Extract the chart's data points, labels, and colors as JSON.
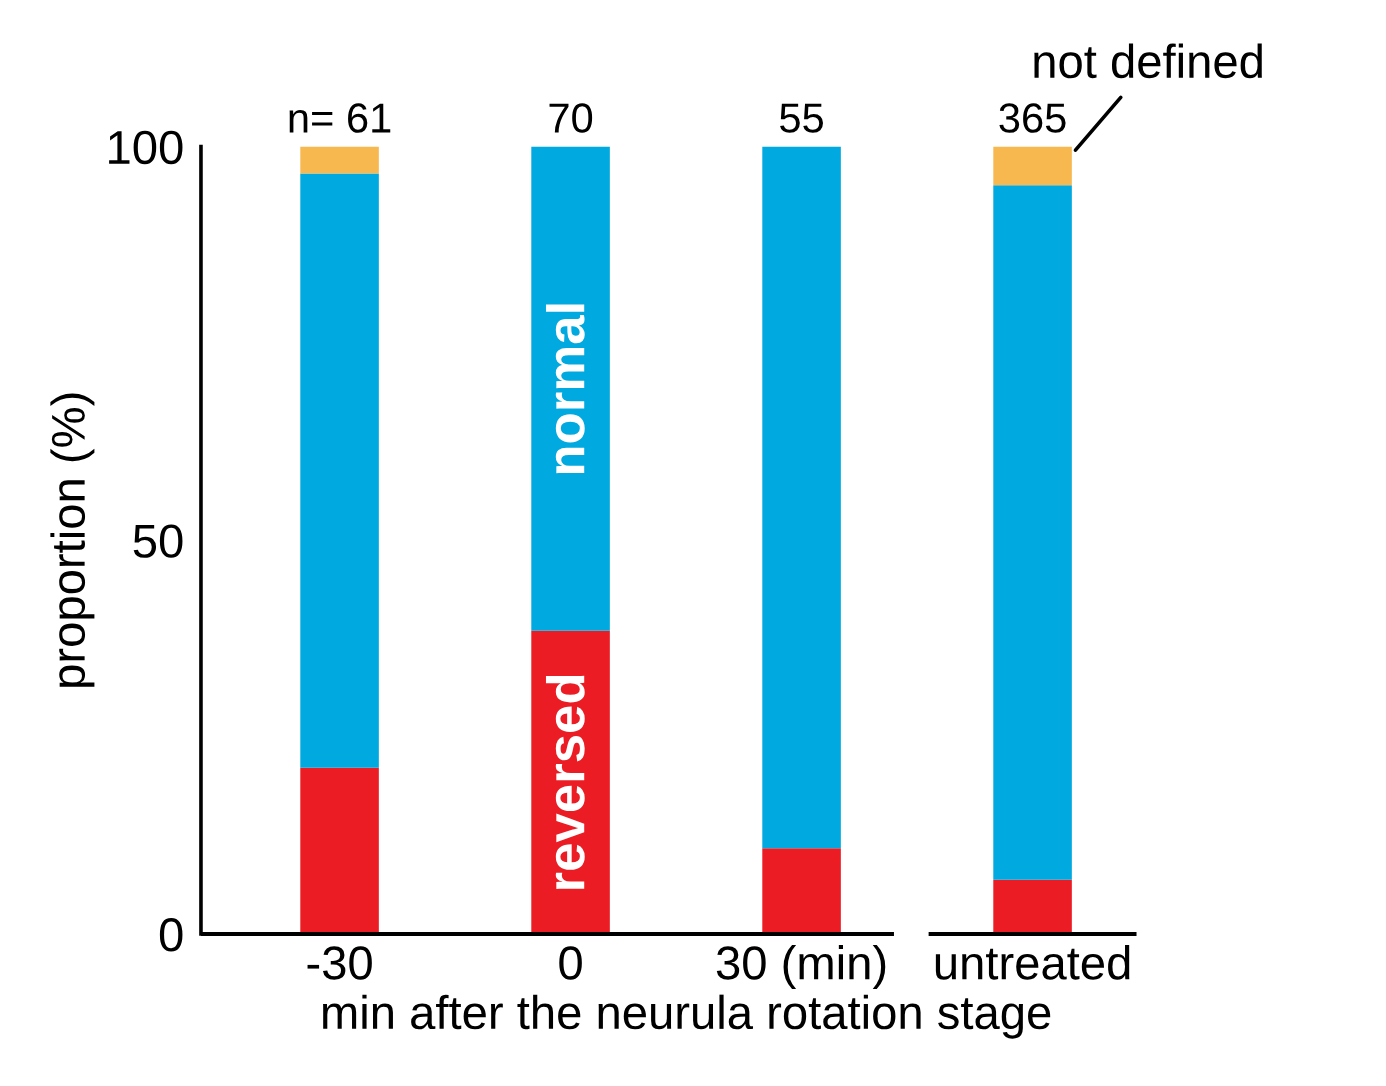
{
  "chart_data": {
    "type": "bar",
    "stacked": true,
    "xlabel": "min after the neurula rotation stage",
    "ylabel": "proportion (%)",
    "categories": [
      "-30",
      "0",
      "30 (min)",
      "untreated"
    ],
    "series": [
      {
        "name": "reversed",
        "color": "#ec1c24",
        "values": [
          21.1,
          38.5,
          10.9,
          6.9
        ]
      },
      {
        "name": "normal",
        "color": "#00a9e0",
        "values": [
          75.5,
          61.5,
          89.1,
          88.2
        ]
      },
      {
        "name": "not defined",
        "color": "#f7b84f",
        "values": [
          3.4,
          0,
          0,
          4.9
        ]
      }
    ],
    "annotations": [
      {
        "text": "n= 61",
        "x": "-30",
        "y": 100
      },
      {
        "text": "70",
        "x": "0",
        "y": 100
      },
      {
        "text": "55",
        "x": "30 (min)",
        "y": 100
      },
      {
        "text": "365",
        "x": "untreated",
        "y": 100
      }
    ],
    "ylim": [
      0,
      100
    ],
    "yticks": [
      0,
      50,
      100
    ],
    "legend": false
  }
}
